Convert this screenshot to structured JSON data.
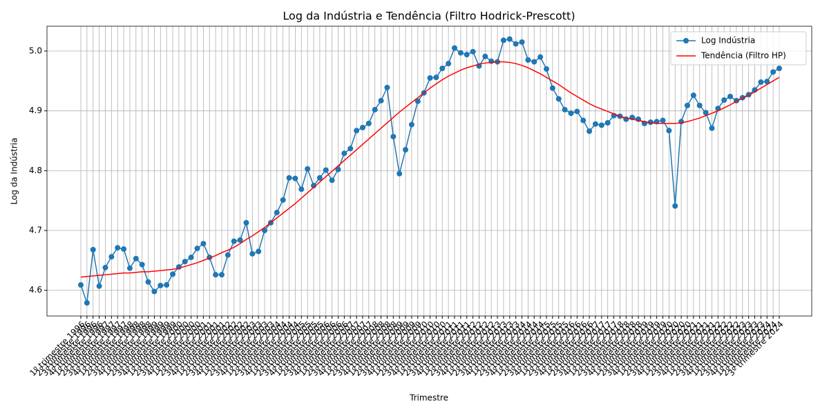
{
  "chart_data": {
    "type": "line",
    "title": "Log da Indústria e Tendência (Filtro Hodrick-Prescott)",
    "xlabel": "Trimestre",
    "ylabel": "Log da Indústria",
    "categories": [
      "1º trimestre 1996",
      "2º trimestre 1996",
      "3º trimestre 1996",
      "4º trimestre 1996",
      "1º trimestre 1997",
      "2º trimestre 1997",
      "3º trimestre 1997",
      "4º trimestre 1997",
      "1º trimestre 1998",
      "2º trimestre 1998",
      "3º trimestre 1998",
      "4º trimestre 1998",
      "1º trimestre 1999",
      "2º trimestre 1999",
      "3º trimestre 1999",
      "4º trimestre 1999",
      "1º trimestre 2000",
      "2º trimestre 2000",
      "3º trimestre 2000",
      "4º trimestre 2000",
      "1º trimestre 2001",
      "2º trimestre 2001",
      "3º trimestre 2001",
      "4º trimestre 2001",
      "1º trimestre 2002",
      "2º trimestre 2002",
      "3º trimestre 2002",
      "4º trimestre 2002",
      "1º trimestre 2003",
      "2º trimestre 2003",
      "3º trimestre 2003",
      "4º trimestre 2003",
      "1º trimestre 2004",
      "2º trimestre 2004",
      "3º trimestre 2004",
      "4º trimestre 2004",
      "1º trimestre 2005",
      "2º trimestre 2005",
      "3º trimestre 2005",
      "4º trimestre 2005",
      "1º trimestre 2006",
      "2º trimestre 2006",
      "3º trimestre 2006",
      "4º trimestre 2006",
      "1º trimestre 2007",
      "2º trimestre 2007",
      "3º trimestre 2007",
      "4º trimestre 2007",
      "1º trimestre 2008",
      "2º trimestre 2008",
      "3º trimestre 2008",
      "4º trimestre 2008",
      "1º trimestre 2009",
      "2º trimestre 2009",
      "3º trimestre 2009",
      "4º trimestre 2009",
      "1º trimestre 2010",
      "2º trimestre 2010",
      "3º trimestre 2010",
      "4º trimestre 2010",
      "1º trimestre 2011",
      "2º trimestre 2011",
      "3º trimestre 2011",
      "4º trimestre 2011",
      "1º trimestre 2012",
      "2º trimestre 2012",
      "3º trimestre 2012",
      "4º trimestre 2012",
      "1º trimestre 2013",
      "2º trimestre 2013",
      "3º trimestre 2013",
      "4º trimestre 2013",
      "1º trimestre 2014",
      "2º trimestre 2014",
      "3º trimestre 2014",
      "4º trimestre 2014",
      "1º trimestre 2015",
      "2º trimestre 2015",
      "3º trimestre 2015",
      "4º trimestre 2015",
      "1º trimestre 2016",
      "2º trimestre 2016",
      "3º trimestre 2016",
      "4º trimestre 2016",
      "1º trimestre 2017",
      "2º trimestre 2017",
      "3º trimestre 2017",
      "4º trimestre 2017",
      "1º trimestre 2018",
      "2º trimestre 2018",
      "3º trimestre 2018",
      "4º trimestre 2018",
      "1º trimestre 2019",
      "2º trimestre 2019",
      "3º trimestre 2019",
      "4º trimestre 2019",
      "1º trimestre 2020",
      "2º trimestre 2020",
      "3º trimestre 2020",
      "4º trimestre 2020",
      "1º trimestre 2021",
      "2º trimestre 2021",
      "3º trimestre 2021",
      "4º trimestre 2021",
      "1º trimestre 2022",
      "2º trimestre 2022",
      "3º trimestre 2022",
      "4º trimestre 2022",
      "1º trimestre 2023",
      "2º trimestre 2023",
      "3º trimestre 2023",
      "4º trimestre 2023",
      "1º trimestre 2024",
      "2º trimestre 2024",
      "3º trimestre 2024"
    ],
    "series": [
      {
        "name": "Log Indústria",
        "color": "#1f77b4",
        "marker": true,
        "values": [
          4.609,
          4.579,
          4.668,
          4.607,
          4.638,
          4.656,
          4.671,
          4.669,
          4.637,
          4.653,
          4.643,
          4.614,
          4.598,
          4.608,
          4.609,
          4.627,
          4.639,
          4.648,
          4.655,
          4.67,
          4.678,
          4.655,
          4.626,
          4.626,
          4.659,
          4.682,
          4.684,
          4.713,
          4.661,
          4.665,
          4.7,
          4.713,
          4.73,
          4.751,
          4.788,
          4.787,
          4.769,
          4.803,
          4.775,
          4.788,
          4.801,
          4.784,
          4.802,
          4.829,
          4.837,
          4.867,
          4.872,
          4.879,
          4.902,
          4.917,
          4.939,
          4.857,
          4.795,
          4.835,
          4.877,
          4.916,
          4.93,
          4.955,
          4.956,
          4.971,
          4.979,
          5.005,
          4.997,
          4.994,
          4.999,
          4.975,
          4.991,
          4.983,
          4.982,
          5.018,
          5.02,
          5.012,
          5.015,
          4.985,
          4.982,
          4.99,
          4.97,
          4.938,
          4.92,
          4.902,
          4.896,
          4.899,
          4.884,
          4.866,
          4.878,
          4.876,
          4.88,
          4.892,
          4.891,
          4.886,
          4.889,
          4.886,
          4.879,
          4.881,
          4.882,
          4.884,
          4.867,
          4.741,
          4.882,
          4.909,
          4.926,
          4.909,
          4.897,
          4.871,
          4.904,
          4.918,
          4.924,
          4.917,
          4.922,
          4.927,
          4.935,
          4.948,
          4.949,
          4.965,
          4.971
        ]
      },
      {
        "name": "Tendência (Filtro HP)",
        "color": "#ff0000",
        "marker": false,
        "values": [
          4.622,
          4.623,
          4.624,
          4.625,
          4.626,
          4.627,
          4.628,
          4.629,
          4.629,
          4.63,
          4.631,
          4.631,
          4.632,
          4.633,
          4.634,
          4.635,
          4.637,
          4.64,
          4.643,
          4.646,
          4.65,
          4.654,
          4.658,
          4.663,
          4.667,
          4.672,
          4.678,
          4.685,
          4.691,
          4.698,
          4.705,
          4.713,
          4.721,
          4.729,
          4.737,
          4.745,
          4.754,
          4.763,
          4.772,
          4.781,
          4.79,
          4.799,
          4.808,
          4.817,
          4.826,
          4.835,
          4.844,
          4.853,
          4.862,
          4.871,
          4.88,
          4.889,
          4.898,
          4.906,
          4.914,
          4.922,
          4.93,
          4.938,
          4.945,
          4.952,
          4.958,
          4.963,
          4.968,
          4.972,
          4.975,
          4.978,
          4.98,
          4.981,
          4.982,
          4.982,
          4.981,
          4.979,
          4.976,
          4.972,
          4.967,
          4.962,
          4.956,
          4.95,
          4.944,
          4.937,
          4.93,
          4.924,
          4.918,
          4.912,
          4.907,
          4.903,
          4.899,
          4.895,
          4.891,
          4.888,
          4.886,
          4.884,
          4.882,
          4.88,
          4.879,
          4.879,
          4.879,
          4.879,
          4.88,
          4.882,
          4.885,
          4.888,
          4.892,
          4.896,
          4.9,
          4.905,
          4.91,
          4.916,
          4.921,
          4.926,
          4.932,
          4.938,
          4.944,
          4.95,
          4.956
        ]
      }
    ],
    "ylim": [
      4.557,
      5.0415
    ],
    "yticks": [
      4.6,
      4.7,
      4.8,
      4.9,
      {
        "value": 5.0,
        "label": "5.0"
      }
    ],
    "grid": true,
    "legend": "upper right"
  }
}
